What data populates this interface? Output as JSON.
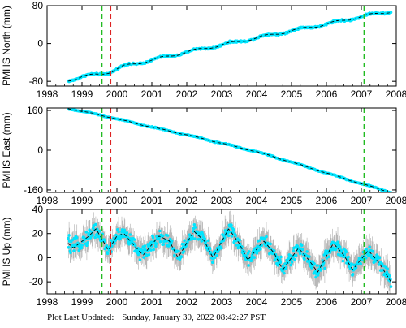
{
  "footer": {
    "label": "Plot Last Updated:",
    "timestamp": "Sunday, January 30, 2022 08:42:27 PST"
  },
  "colors": {
    "data": "#00e5ff",
    "model": "#000000",
    "error_bar": "#b0b0b0",
    "marker_green": "#22bb22",
    "marker_red": "#dd2222"
  },
  "chart_data": [
    {
      "type": "line",
      "ylabel": "PMHS North (mm)",
      "xlim": [
        1998,
        2008
      ],
      "ylim": [
        -90,
        80
      ],
      "xticks": [
        1998,
        1999,
        2000,
        2001,
        2002,
        2003,
        2004,
        2005,
        2006,
        2007,
        2008
      ],
      "xtick_labels": [
        "1998",
        "1999",
        "2000",
        "2001",
        "2002",
        "2003",
        "2004",
        "2005",
        "2006",
        "2007",
        "2008"
      ],
      "yticks": [
        -80,
        0,
        80
      ],
      "ytick_labels": [
        "-80",
        "0",
        "80"
      ],
      "start": 1998.6,
      "end": 2007.85,
      "model_x": [
        1998.6,
        1999.0,
        1999.5,
        1999.8,
        2000.2,
        2001.0,
        2002.0,
        2003.0,
        2004.0,
        2005.0,
        2006.0,
        2007.0,
        2007.85
      ],
      "model_y": [
        -78,
        -70,
        -65,
        -60,
        -48,
        -35,
        -18,
        -3,
        12,
        27,
        41,
        57,
        68
      ],
      "seasonal_amp": 2.5,
      "error": 2.5,
      "noise": 1.5,
      "vlines": [
        {
          "x": 1999.57,
          "color": "green"
        },
        {
          "x": 1999.82,
          "color": "red"
        },
        {
          "x": 2007.08,
          "color": "green"
        }
      ]
    },
    {
      "type": "line",
      "ylabel": "PMHS East (mm)",
      "xlim": [
        1998,
        2008
      ],
      "ylim": [
        -170,
        170
      ],
      "xticks": [
        1998,
        1999,
        2000,
        2001,
        2002,
        2003,
        2004,
        2005,
        2006,
        2007,
        2008
      ],
      "xtick_labels": [
        "1998",
        "1999",
        "2000",
        "2001",
        "2002",
        "2003",
        "2004",
        "2005",
        "2006",
        "2007",
        "2008"
      ],
      "yticks": [
        -160,
        0,
        160
      ],
      "ytick_labels": [
        "-160",
        "0",
        "160"
      ],
      "start": 1998.6,
      "end": 2007.85,
      "model_x": [
        1998.6,
        1999.57,
        1999.82,
        2001.0,
        2002.0,
        2003.0,
        2004.0,
        2005.0,
        2006.0,
        2007.0,
        2007.85
      ],
      "model_y": [
        168,
        140,
        132,
        93,
        62,
        28,
        -6,
        -48,
        -92,
        -135,
        -170
      ],
      "seasonal_amp": 1.5,
      "error": 2.5,
      "noise": 1.5,
      "vlines": [
        {
          "x": 1999.57,
          "color": "green"
        },
        {
          "x": 1999.82,
          "color": "red"
        },
        {
          "x": 2007.08,
          "color": "green"
        }
      ]
    },
    {
      "type": "line",
      "ylabel": "PMHS Up (mm)",
      "xlim": [
        1998,
        2008
      ],
      "ylim": [
        -30,
        40
      ],
      "xticks": [
        1998,
        1999,
        2000,
        2001,
        2002,
        2003,
        2004,
        2005,
        2006,
        2007,
        2008
      ],
      "xtick_labels": [
        "1998",
        "1999",
        "2000",
        "2001",
        "2002",
        "2003",
        "2004",
        "2005",
        "2006",
        "2007",
        "2008"
      ],
      "yticks": [
        -20,
        0,
        20,
        40
      ],
      "ytick_labels": [
        "-20",
        "0",
        "20",
        "40"
      ],
      "start": 1998.6,
      "end": 2007.85,
      "model_x": [
        1998.6,
        1998.75,
        1999.2,
        1999.4,
        1999.6,
        1999.75,
        2000.0,
        2000.2,
        2000.5,
        2000.75,
        2001.2,
        2001.5,
        2001.75,
        2002.2,
        2002.5,
        2002.75,
        2003.2,
        2003.5,
        2003.75,
        2004.2,
        2004.5,
        2004.75,
        2005.2,
        2005.5,
        2005.75,
        2006.2,
        2006.5,
        2006.75,
        2007.2,
        2007.5,
        2007.85
      ],
      "model_y": [
        12,
        8,
        18,
        24,
        14,
        6,
        18,
        20,
        10,
        2,
        18,
        14,
        0,
        22,
        14,
        0,
        24,
        12,
        -2,
        14,
        4,
        -10,
        8,
        -2,
        -12,
        12,
        2,
        -10,
        6,
        -4,
        -20
      ],
      "seasonal_amp": 0,
      "error": 9,
      "noise": 5,
      "vlines": [
        {
          "x": 1999.57,
          "color": "green"
        },
        {
          "x": 1999.82,
          "color": "red"
        },
        {
          "x": 2007.08,
          "color": "green"
        }
      ]
    }
  ]
}
